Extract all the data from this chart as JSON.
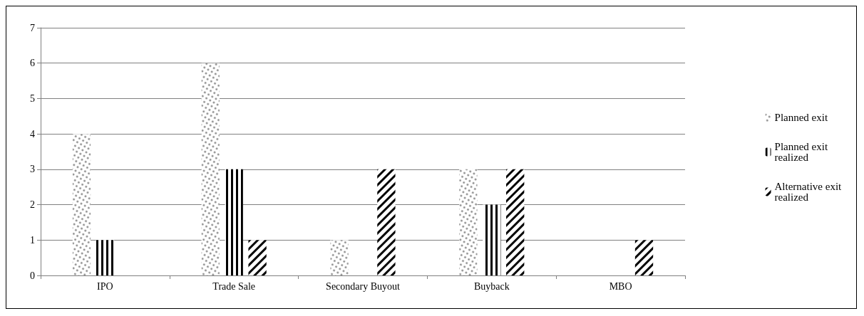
{
  "chart_data": {
    "type": "bar",
    "categories": [
      "IPO",
      "Trade Sale",
      "Secondary Buyout",
      "Buyback",
      "MBO"
    ],
    "series": [
      {
        "name": "Planned exit",
        "color": "#808080",
        "values": [
          4,
          6,
          1,
          3,
          0
        ]
      },
      {
        "name": "Planned exit realized",
        "color": "#000000",
        "values": [
          1,
          3,
          0,
          2,
          0
        ]
      },
      {
        "name": "Alternative exit realized",
        "color": "#000000",
        "values": [
          0,
          1,
          3,
          3,
          1
        ]
      }
    ],
    "ylim": [
      0,
      7
    ],
    "yticks": [
      0,
      1,
      2,
      3,
      4,
      5,
      6,
      7
    ],
    "grid": "y",
    "legend": "right"
  }
}
